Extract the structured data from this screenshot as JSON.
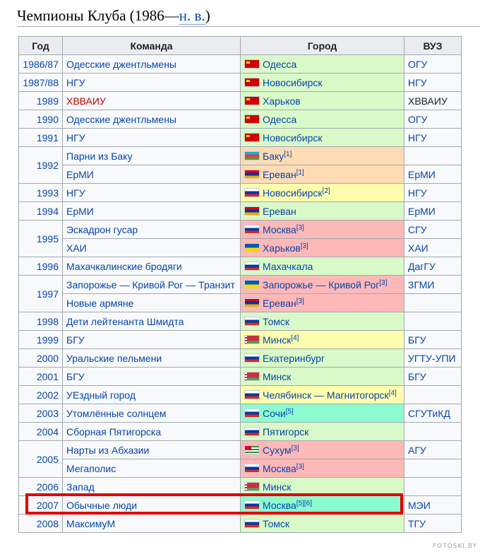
{
  "heading": {
    "text": "Чемпионы Клуба (1986—",
    "abbr": "н. в.",
    "tail": ")"
  },
  "columns": {
    "year": "Год",
    "team": "Команда",
    "city": "Город",
    "uni": "ВУЗ"
  },
  "rows": [
    {
      "year": "1986/87",
      "team": "Одесские джентльмены",
      "flag": "ussr",
      "city": "Одесса",
      "sup": "",
      "uni": "ОГУ",
      "color": "green"
    },
    {
      "year": "1987/88",
      "team": "НГУ",
      "flag": "ussr",
      "city": "Новосибирск",
      "sup": "",
      "uni": "НГУ",
      "color": "green"
    },
    {
      "year": "1989",
      "team": "ХВВАИУ",
      "flag": "ussr",
      "city": "Харьков",
      "sup": "",
      "uni": "ХВВАИУ",
      "color": "green",
      "team_red": true,
      "uni_plain": true
    },
    {
      "year": "1990",
      "team": "Одесские джентльмены",
      "flag": "ussr",
      "city": "Одесса",
      "sup": "",
      "uni": "ОГУ",
      "color": "green"
    },
    {
      "year": "1991",
      "team": "НГУ",
      "flag": "ussr",
      "city": "Новосибирск",
      "sup": "",
      "uni": "НГУ",
      "color": "green"
    },
    {
      "year": "1992",
      "span": 2,
      "team": "Парни из Баку",
      "flag": "aze",
      "city": "Баку",
      "sup": "[1]",
      "uni": "",
      "color": "orange"
    },
    {
      "team": "ЕрМИ",
      "flag": "arm",
      "city": "Ереван",
      "sup": "[1]",
      "uni": "ЕрМИ",
      "color": "orange"
    },
    {
      "year": "1993",
      "team": "НГУ",
      "flag": "rus",
      "city": "Новосибирск",
      "sup": "[2]",
      "uni": "НГУ",
      "color": "yellow"
    },
    {
      "year": "1994",
      "team": "ЕрМИ",
      "flag": "arm",
      "city": "Ереван",
      "sup": "",
      "uni": "ЕрМИ",
      "color": "green"
    },
    {
      "year": "1995",
      "span": 2,
      "team": "Эскадрон гусар",
      "flag": "rus",
      "city": "Москва",
      "sup": "[3]",
      "uni": "СГУ",
      "color": "red"
    },
    {
      "team": "ХАИ",
      "flag": "ukr",
      "city": "Харьков",
      "sup": "[3]",
      "uni": "ХАИ",
      "color": "red"
    },
    {
      "year": "1996",
      "team": "Махачкалинские бродяги",
      "flag": "rus",
      "city": "Махачкала",
      "sup": "",
      "uni": "ДагГУ",
      "color": "green"
    },
    {
      "year": "1997",
      "span": 2,
      "team": "Запорожье — Кривой Рог — Транзит",
      "flag": "ukr",
      "city": "Запорожье — Кривой Рог",
      "sup": "[3]",
      "uni": "ЗГМИ",
      "color": "red"
    },
    {
      "team": "Новые армяне",
      "flag": "arm",
      "city": "Ереван",
      "sup": "[3]",
      "uni": "",
      "color": "red"
    },
    {
      "year": "1998",
      "team": "Дети лейтенанта Шмидта",
      "flag": "rus",
      "city": "Томск",
      "sup": "",
      "uni": "",
      "color": "green"
    },
    {
      "year": "1999",
      "team": "БГУ",
      "flag": "blr",
      "city": "Минск",
      "sup": "[4]",
      "uni": "БГУ",
      "color": "yellow"
    },
    {
      "year": "2000",
      "team": "Уральские пельмени",
      "flag": "rus",
      "city": "Екатеринбург",
      "sup": "",
      "uni": "УГТУ-УПИ",
      "color": "green"
    },
    {
      "year": "2001",
      "team": "БГУ",
      "flag": "blr",
      "city": "Минск",
      "sup": "",
      "uni": "БГУ",
      "color": "green"
    },
    {
      "year": "2002",
      "team": "УЕздный город",
      "flag": "rus",
      "city": "Челябинск — Магнитогорск",
      "sup": "[4]",
      "uni": "",
      "color": "yellow"
    },
    {
      "year": "2003",
      "team": "Утомлённые солнцем",
      "flag": "rus",
      "city": "Сочи",
      "sup": "[5]",
      "uni": "СГУТиКД",
      "color": "aqua"
    },
    {
      "year": "2004",
      "team": "Сборная Пятигорска",
      "flag": "rus",
      "city": "Пятигорск",
      "sup": "",
      "uni": "",
      "color": "green"
    },
    {
      "year": "2005",
      "span": 2,
      "team": "Нарты из Абхазии",
      "flag": "abk",
      "city": "Сухум",
      "sup": "[3]",
      "uni": "АГУ",
      "color": "red"
    },
    {
      "team": "Мегаполис",
      "flag": "rus",
      "city": "Москва",
      "sup": "[3]",
      "uni": "",
      "color": "red"
    },
    {
      "year": "2006",
      "team": "Запад",
      "flag": "blr",
      "city": "Минск",
      "sup": "",
      "uni": "",
      "color": "green"
    },
    {
      "year": "2007",
      "team": "Обычные люди",
      "flag": "rus",
      "city": "Москва",
      "sup": "[5][6]",
      "uni": "МЭИ",
      "color": "aqua"
    },
    {
      "year": "2008",
      "team": "МаксимуМ",
      "flag": "rus",
      "city": "Томск",
      "sup": "",
      "uni": "ТГУ",
      "color": "green"
    }
  ],
  "watermark": "FOTOSKI.BY"
}
